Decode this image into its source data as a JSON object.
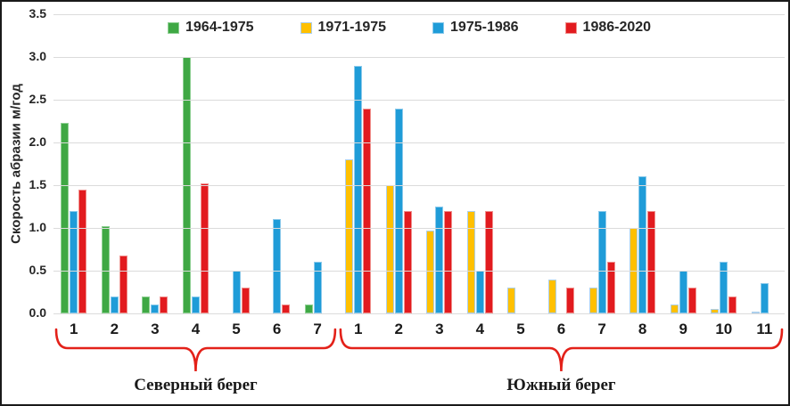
{
  "window": {
    "background": "#ffffff",
    "border_color": "#1a1a1a"
  },
  "chart_data": {
    "type": "bar",
    "title": "",
    "xlabel": "",
    "ylabel": "Скорость абразии м/год",
    "ylim": [
      0,
      3.5
    ],
    "ytick_step": 0.5,
    "yticks": [
      "3.5",
      "3.0",
      "2.5",
      "2.0",
      "1.5",
      "1.0",
      "0.5",
      "0.0"
    ],
    "grid": true,
    "legend_position": "top",
    "grid_color": "#dbdbdb",
    "text_color": "#262626",
    "brace_color": "#e32119",
    "series": [
      {
        "name": "1964-1975",
        "color": "#3fa844",
        "border": "#8fd094"
      },
      {
        "name": "1971-1975",
        "color": "#ffc000",
        "border": "#accfec"
      },
      {
        "name": "1975-1986",
        "color": "#1f9cd8",
        "border": "#8ccaeb"
      },
      {
        "name": "1986-2020",
        "color": "#e21b1f",
        "border": "#f0908d"
      }
    ],
    "sections": [
      {
        "label": "Северный берег",
        "series_order": [
          "1964-1975",
          "1975-1986",
          "1986-2020"
        ],
        "groups": [
          {
            "label": "1",
            "values": [
              2.23,
              1.2,
              1.45
            ]
          },
          {
            "label": "2",
            "values": [
              1.02,
              0.2,
              0.68
            ]
          },
          {
            "label": "3",
            "values": [
              0.2,
              0.1,
              0.2
            ]
          },
          {
            "label": "4",
            "values": [
              3.0,
              0.2,
              1.52
            ]
          },
          {
            "label": "5",
            "values": [
              null,
              0.5,
              0.3
            ]
          },
          {
            "label": "6",
            "values": [
              null,
              1.1,
              0.1
            ]
          },
          {
            "label": "7",
            "values": [
              0.1,
              0.6,
              null
            ]
          }
        ]
      },
      {
        "label": "Южный берег",
        "series_order": [
          "1971-1975",
          "1975-1986",
          "1986-2020"
        ],
        "groups": [
          {
            "label": "1",
            "values": [
              1.8,
              2.9,
              2.4
            ]
          },
          {
            "label": "2",
            "values": [
              1.5,
              2.4,
              1.2
            ]
          },
          {
            "label": "3",
            "values": [
              0.97,
              1.25,
              1.2
            ]
          },
          {
            "label": "4",
            "values": [
              1.2,
              0.5,
              1.2
            ]
          },
          {
            "label": "5",
            "values": [
              0.3,
              null,
              null
            ]
          },
          {
            "label": "6",
            "values": [
              0.4,
              null,
              0.3
            ]
          },
          {
            "label": "7",
            "values": [
              0.3,
              1.2,
              0.6
            ]
          },
          {
            "label": "8",
            "values": [
              1.0,
              1.6,
              1.2
            ]
          },
          {
            "label": "9",
            "values": [
              0.1,
              0.5,
              0.3
            ]
          },
          {
            "label": "10",
            "values": [
              0.05,
              0.6,
              0.2
            ]
          },
          {
            "label": "11",
            "values": [
              0.02,
              0.35,
              null
            ]
          }
        ]
      }
    ]
  }
}
